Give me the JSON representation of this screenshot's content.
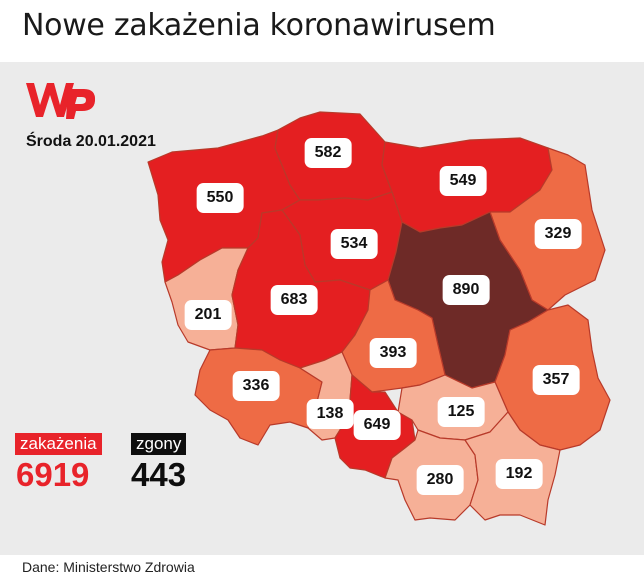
{
  "title": "Nowe zakażenia koronawirusem",
  "date": "Środa 20.01.2021",
  "logo_icon": "wp-logo-icon",
  "totals": {
    "cases_label": "zakażenia",
    "cases_value": "6919",
    "deaths_label": "zgony",
    "deaths_value": "443"
  },
  "source": "Dane: Ministerstwo Zdrowia",
  "colors": {
    "dark": "#6e2a27",
    "red": "#e41f21",
    "orange": "#ee6b45",
    "light": "#f6b097",
    "accent": "#e8232a"
  },
  "regions": [
    {
      "name": "zachodniopomorskie",
      "value": "550",
      "tier": "red"
    },
    {
      "name": "pomorskie",
      "value": "582",
      "tier": "red"
    },
    {
      "name": "warmińsko-mazurskie",
      "value": "549",
      "tier": "red"
    },
    {
      "name": "podlaskie",
      "value": "329",
      "tier": "orange"
    },
    {
      "name": "kujawsko-pomorskie",
      "value": "534",
      "tier": "red"
    },
    {
      "name": "lubuskie",
      "value": "201",
      "tier": "light"
    },
    {
      "name": "wielkopolskie",
      "value": "683",
      "tier": "red"
    },
    {
      "name": "mazowieckie",
      "value": "890",
      "tier": "dark"
    },
    {
      "name": "łódzkie",
      "value": "393",
      "tier": "orange"
    },
    {
      "name": "dolnośląskie",
      "value": "336",
      "tier": "orange"
    },
    {
      "name": "lubelskie",
      "value": "357",
      "tier": "orange"
    },
    {
      "name": "opolskie",
      "value": "138",
      "tier": "light"
    },
    {
      "name": "śląskie",
      "value": "649",
      "tier": "red"
    },
    {
      "name": "świętokrzyskie",
      "value": "125",
      "tier": "light"
    },
    {
      "name": "małopolskie",
      "value": "280",
      "tier": "light"
    },
    {
      "name": "podkarpackie",
      "value": "192",
      "tier": "light"
    }
  ]
}
